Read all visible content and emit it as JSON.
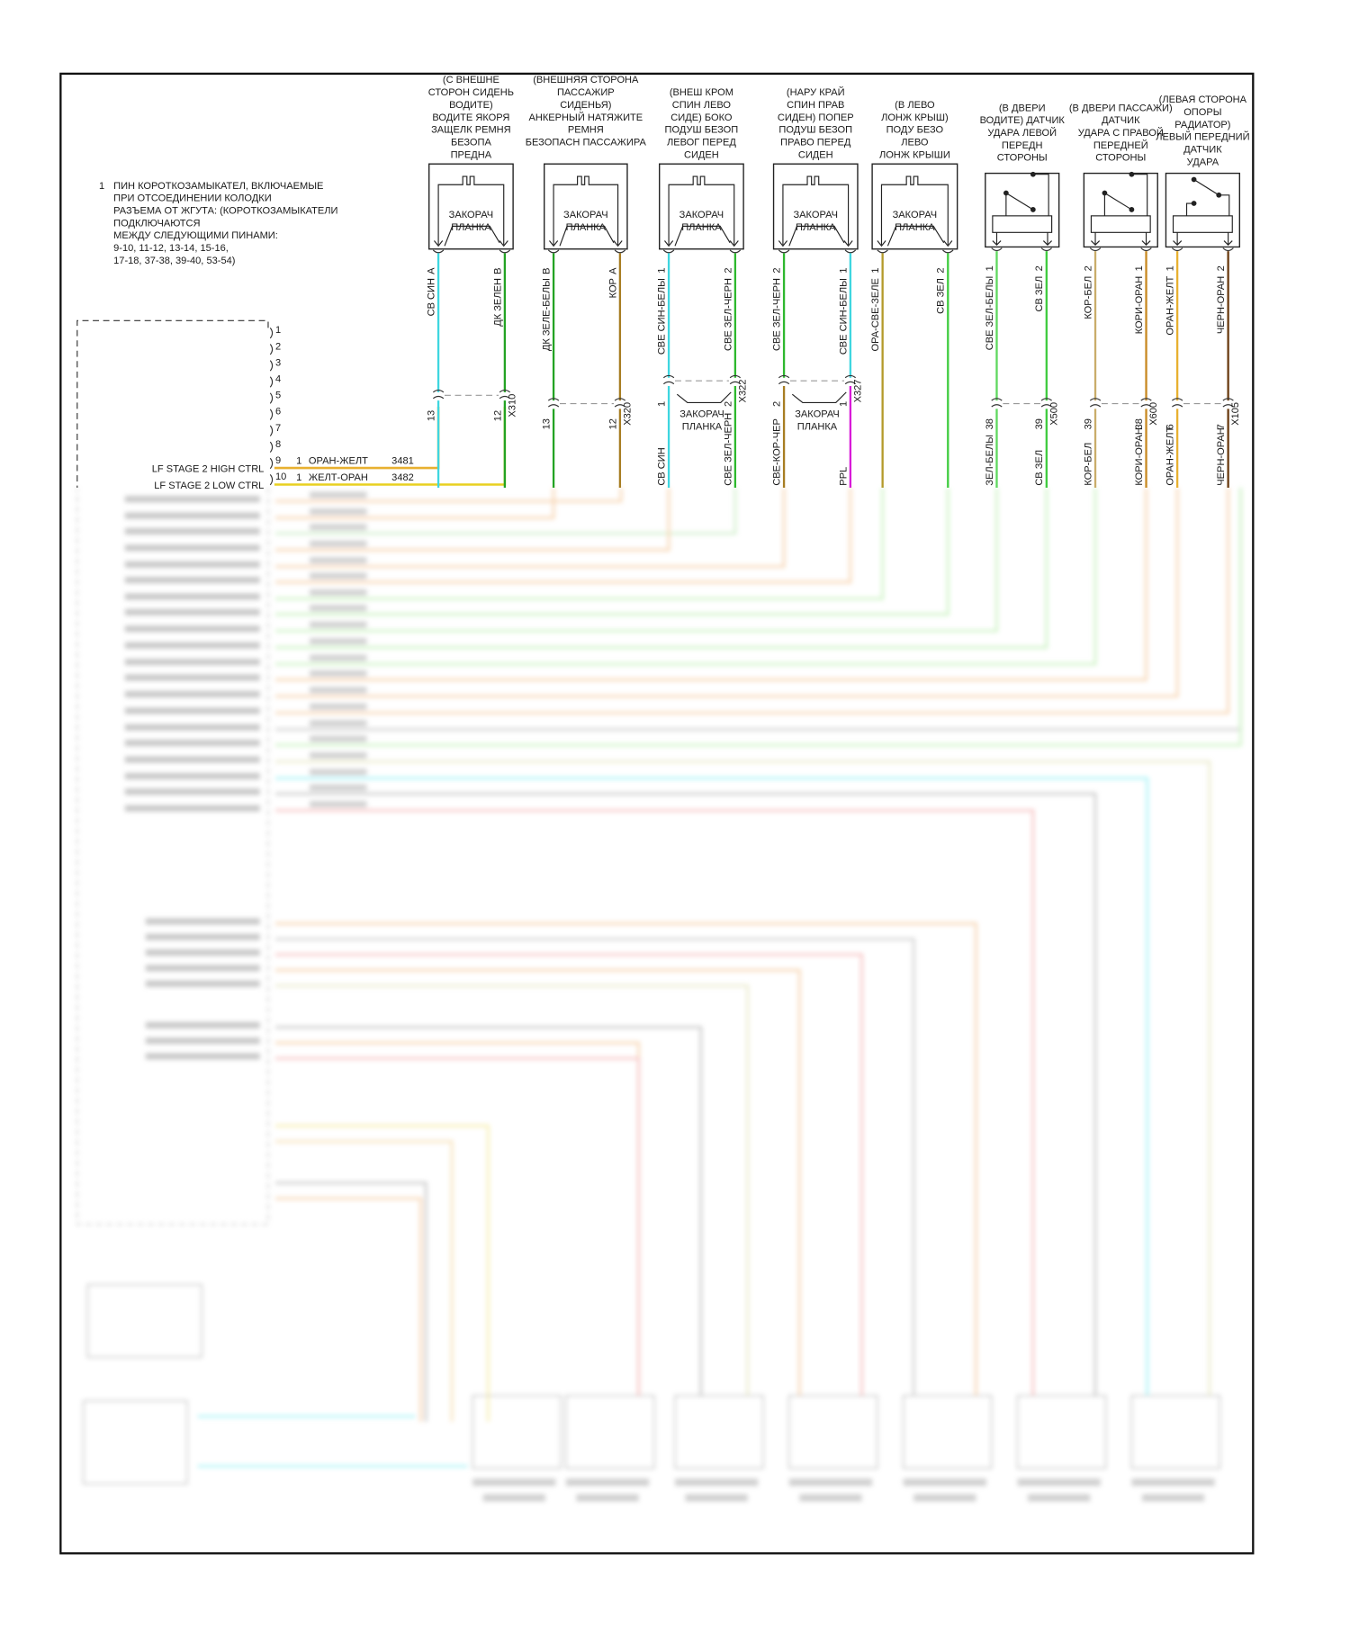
{
  "note": {
    "number": "1",
    "lines": [
      "ПИН КОРОТКОЗАМЫКАТЕЛ, ВКЛЮЧАЕМЫЕ",
      "ПРИ ОТСОЕДИНЕНИИ КОЛОДКИ",
      "РАЗЪЕМА ОТ ЖГУТА: (КОРОТКОЗАМЫКАТЕЛИ",
      "ПОДКЛЮЧАЮТСЯ",
      "МЕЖДУ СЛЕДУЮЩИМИ ПИНАМИ:",
      "9-10, 11-12, 13-14, 15-16,",
      "17-18, 37-38, 39-40, 53-54)"
    ]
  },
  "module": {
    "pins": [
      "1",
      "2",
      "3",
      "4",
      "5",
      "6",
      "7",
      "8",
      "9",
      "10"
    ],
    "circuits": [
      {
        "pin": "9",
        "label": "LF STAGE 2 HIGH CTRL",
        "cavity": "1",
        "wire": "ОРАН-ЖЕЛТ",
        "circuit": "3481",
        "color": "#e8b030"
      },
      {
        "pin": "10",
        "label": "LF STAGE 2 LOW CTRL",
        "cavity": "1",
        "wire": "ЖЕЛТ-ОРАН",
        "circuit": "3482",
        "color": "#e8d020"
      }
    ]
  },
  "components": [
    {
      "header": [
        "(С ВНЕШНЕ",
        "СТОРОН СИДЕНЬ",
        "ВОДИТЕ)",
        "ВОДИТЕ ЯКОРЯ",
        "ЗАЩЕЛК РЕМНЯ",
        "БЕЗОПА",
        "ПРЕДНА"
      ],
      "type": "squib",
      "body": [
        "ЗАКОРАЧ",
        "ПЛАНКА"
      ],
      "pins": [
        {
          "pin": "A",
          "wire": "СВ СИН",
          "color": "#3fd6e0"
        },
        {
          "pin": "B",
          "wire": "ДК ЗЕЛЕН",
          "color": "#23a323"
        }
      ],
      "connector": {
        "name": "X310",
        "pins": [
          "13",
          "12"
        ],
        "lower": [
          "",
          ""
        ]
      }
    },
    {
      "header": [
        "(ВНЕШНЯЯ СТОРОНА",
        "ПАССАЖИР",
        "СИДЕНЬЯ)",
        "АНКЕРНЫЙ НАТЯЖИТЕ",
        "РЕМНЯ",
        "БЕЗОПАСН ПАССАЖИРА"
      ],
      "type": "squib",
      "body": [
        "ЗАКОРАЧ",
        "ПЛАНКА"
      ],
      "pins": [
        {
          "pin": "B",
          "wire": "ДК ЗЕЛЕ-БЕЛЫ",
          "color": "#23a323"
        },
        {
          "pin": "A",
          "wire": "КОР",
          "color": "#a77d22"
        }
      ],
      "connector": {
        "name": "X320",
        "pins": [
          "13",
          "12"
        ],
        "lower": [
          "",
          ""
        ]
      }
    },
    {
      "header": [
        "(ВНЕШ КРОМ",
        "СПИН ЛЕВО",
        "СИДЕ) БОКО",
        "ПОДУШ БЕЗОП",
        "ЛЕВОГ ПЕРЕД",
        "СИДЕН"
      ],
      "type": "squib",
      "body": [
        "ЗАКОРАЧ",
        "ПЛАНКА"
      ],
      "pins": [
        {
          "pin": "1",
          "wire": "СВЕ СИН-БЕЛЫ",
          "color": "#3fd6e0"
        },
        {
          "pin": "2",
          "wire": "СВЕ ЗЕЛ-ЧЕРН",
          "color": "#2eb82e"
        }
      ],
      "connector": {
        "name": "X322",
        "pins": [
          "1",
          "2"
        ],
        "lower": [
          "СВ СИН",
          "СВЕ ЗЕЛ-ЧЕРН"
        ],
        "lower_colors": [
          "#3fd6e0",
          "#2eb82e"
        ],
        "shorting": [
          "ЗАКОРАЧ",
          "ПЛАНКА"
        ]
      }
    },
    {
      "header": [
        "(НАРУ КРАЙ",
        "СПИН ПРАВ",
        "СИДЕН) ПОПЕР",
        "ПОДУШ БЕЗОП",
        "ПРАВО ПЕРЕД",
        "СИДЕН"
      ],
      "type": "squib",
      "body": [
        "ЗАКОРАЧ",
        "ПЛАНКА"
      ],
      "pins": [
        {
          "pin": "2",
          "wire": "СВЕ ЗЕЛ-ЧЕРН",
          "color": "#2eb82e"
        },
        {
          "pin": "1",
          "wire": "СВЕ СИН-БЕЛЫ",
          "color": "#3fd6e0"
        }
      ],
      "connector": {
        "name": "X327",
        "pins": [
          "2",
          "1"
        ],
        "lower": [
          "СВЕ-КОР-ЧЕР",
          "PPL"
        ],
        "lower_colors": [
          "#a77d22",
          "#d81ad8"
        ],
        "shorting": [
          "ЗАКОРАЧ",
          "ПЛАНКА"
        ]
      }
    },
    {
      "header": [
        "(В ЛЕВО",
        "ЛОНЖ КРЫШ)",
        "ПОДУ БЕЗО",
        "ЛЕВО",
        "ЛОНЖ КРЫШИ"
      ],
      "type": "squib",
      "body": [
        "ЗАКОРАЧ",
        "ПЛАНКА"
      ],
      "pins": [
        {
          "pin": "1",
          "wire": "ОРА-СВЕ-ЗЕЛЕ",
          "color": "#b39a2a"
        },
        {
          "pin": "2",
          "wire": "СВ ЗЕЛ",
          "color": "#3fcc3f"
        }
      ],
      "connector": null
    },
    {
      "header": [
        "(В ДВЕРИ",
        "ВОДИТЕ) ДАТЧИК",
        "УДАРА ЛЕВОЙ",
        "ПЕРЕДН",
        "СТОРОНЫ"
      ],
      "type": "sensor",
      "pins": [
        {
          "pin": "1",
          "wire": "СВЕ ЗЕЛ-БЕЛЫ",
          "color": "#5fd85f"
        },
        {
          "pin": "2",
          "wire": "СВ ЗЕЛ",
          "color": "#3fcc3f"
        }
      ],
      "connector": {
        "name": "X500",
        "pins": [
          "38",
          "39"
        ],
        "lower": [
          "ЗЕЛ-БЕЛЫ",
          "СВ ЗЕЛ"
        ],
        "lower_colors": [
          "#5fd85f",
          "#3fcc3f"
        ]
      }
    },
    {
      "header": [
        "(В ДВЕРИ ПАССАЖИ)",
        "ДАТЧИК",
        "УДАРА С ПРАВОЙ",
        "ПЕРЕДНЕЙ",
        "СТОРОНЫ"
      ],
      "type": "sensor",
      "pins": [
        {
          "pin": "2",
          "wire": "КОР-БЕЛ",
          "color": "#c9ad6a"
        },
        {
          "pin": "1",
          "wire": "КОРИ-ОРАН",
          "color": "#c88a22"
        }
      ],
      "connector": {
        "name": "X600",
        "pins": [
          "39",
          "38"
        ],
        "lower": [
          "КОР-БЕЛ",
          "КОРИ-ОРАН"
        ],
        "lower_colors": [
          "#c9ad6a",
          "#c88a22"
        ]
      }
    },
    {
      "header": [
        "(ЛЕВАЯ СТОРОНА",
        "ОПОРЫ",
        "РАДИАТОР)",
        "ЛЕВЫЙ ПЕРЕДНИЙ",
        "ДАТЧИК",
        "УДАРА"
      ],
      "type": "sensor2",
      "pins": [
        {
          "pin": "1",
          "wire": "ОРАН-ЖЕЛТ",
          "color": "#e8b030"
        },
        {
          "pin": "2",
          "wire": "ЧЕРН-ОРАН",
          "color": "#6b3d12"
        }
      ],
      "connector": {
        "name": "X105",
        "pins": [
          "6",
          "7"
        ],
        "lower": [
          "ОРАН-ЖЕЛТ",
          "ЧЕРН-ОРАН"
        ],
        "lower_colors": [
          "#e8b030",
          "#6b3d12"
        ]
      }
    }
  ]
}
